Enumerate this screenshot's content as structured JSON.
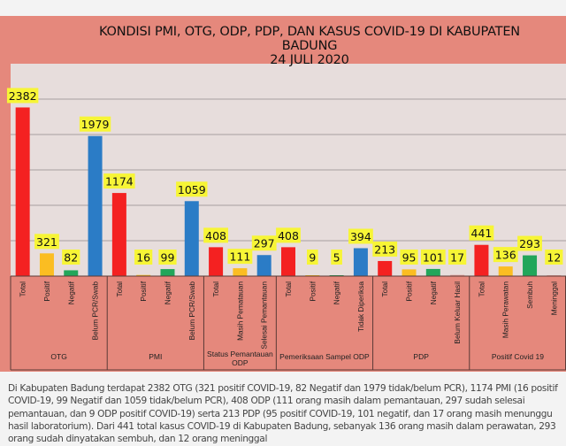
{
  "chart_data": {
    "type": "bar",
    "title": [
      "KONDISI PMI, OTG, ODP, PDP, DAN KASUS COVID-19 DI KABUPATEN",
      "BADUNG",
      "24 JULI 2020"
    ],
    "ylim": [
      0,
      3000
    ],
    "grid": true,
    "groups": [
      {
        "name": "OTG",
        "categories": [
          "Total",
          "Positif",
          "Negatif",
          "Belum PCR/Swab"
        ],
        "values": [
          2382,
          321,
          82,
          1979
        ]
      },
      {
        "name": "PMI",
        "categories": [
          "Total",
          "Positif",
          "Negatif",
          "Belum PCR/Swab"
        ],
        "values": [
          1174,
          16,
          99,
          1059
        ]
      },
      {
        "name": "Status Pemantauan ODP",
        "categories": [
          "Total",
          "Masih Pematauan",
          "Selesai Pemantauan"
        ],
        "values": [
          408,
          111,
          297
        ]
      },
      {
        "name": "Pemeriksaan Sampel ODP",
        "categories": [
          "Total",
          "Positif",
          "Negatif",
          "Tidak Diperiksa"
        ],
        "values": [
          408,
          9,
          5,
          394
        ]
      },
      {
        "name": "PDP",
        "categories": [
          "Total",
          "Positif",
          "Negatif",
          "Belum Keluar Hasil"
        ],
        "values": [
          213,
          95,
          101,
          17
        ]
      },
      {
        "name": "Positif Covid 19",
        "categories": [
          "Total",
          "Masih Perawatan",
          "Sembuh",
          "Meninggal"
        ],
        "values": [
          441,
          136,
          293,
          12
        ]
      }
    ],
    "colors": {
      "Total": "#f42121",
      "Positif": "#fbbd22",
      "Negatif": "#22a65a",
      "Belum PCR/Swab": "#2b7cc6",
      "Masih Pematauan": "#fbbd22",
      "Selesai Pemantauan": "#2b7cc6",
      "Tidak Diperiksa": "#2b7cc6",
      "Belum Keluar Hasil": "#e7a6a0",
      "Masih Perawatan": "#fbbd22",
      "Sembuh": "#22a65a",
      "Meninggal": "#e7a6a0"
    },
    "label_background": "#f7f536"
  },
  "note": "Di Kabupaten Badung terdapat 2382 OTG (321 positif COVID-19, 82 Negatif dan 1979 tidak/belum PCR), 1174 PMI (16 positif COVID-19, 99 Negatif dan 1059 tidak/belum PCR), 408 ODP (111 orang masih dalam pemantauan, 297 sudah selesai pemantauan, dan 9 ODP positif COVID-19) serta 213 PDP (95 positif COVID-19, 101 negatif, dan 17 orang masih menunggu hasil laboratorium). Dari 441 total kasus COVID-19 di Kabupaten Badung, sebanyak 136 orang masih dalam perawatan, 293 orang sudah dinyatakan sembuh, dan 12 orang meninggal"
}
